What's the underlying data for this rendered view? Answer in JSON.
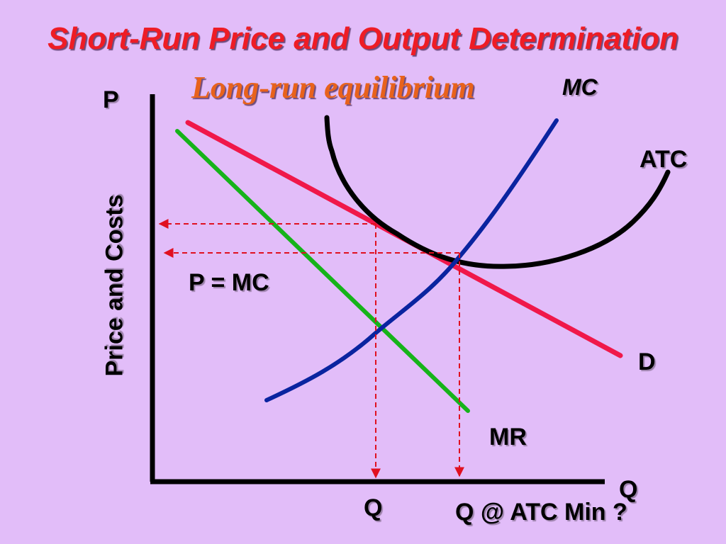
{
  "slide": {
    "title": "Short-Run Price and Output Determination",
    "subtitle": "Long-run equilibrium"
  },
  "axes": {
    "y_label": "Price and Costs",
    "y_symbol": "P",
    "x_symbol": "Q"
  },
  "curves": {
    "mc": "MC",
    "atc": "ATC",
    "demand": "D",
    "mr": "MR"
  },
  "annotations": {
    "p_equals_mc": "P = MC",
    "q_profit_max": "Q",
    "q_atc_min": "Q @ ATC Min ?"
  },
  "colors": {
    "background": "#e2bdf9",
    "title": "#ee1c25",
    "subtitle": "#e8621c",
    "demand": "#f0184a",
    "mr": "#16b31a",
    "mc": "#0a24a0",
    "atc": "#000000",
    "guides": "#e01020"
  }
}
